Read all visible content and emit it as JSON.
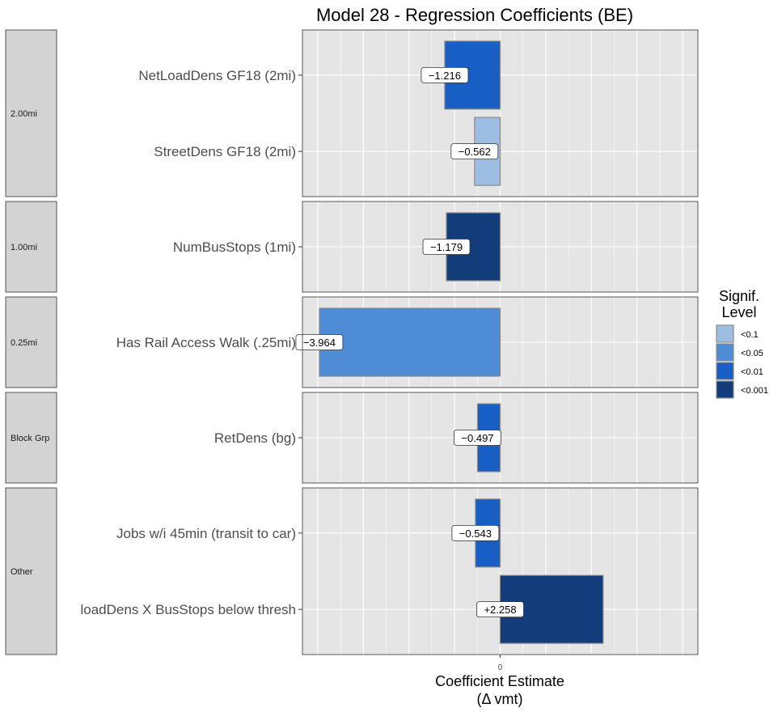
{
  "chart_data": {
    "type": "bar",
    "orientation": "horizontal",
    "title": "Model 28 - Regression Coefficients (BE)",
    "xlabel_line1": "Coefficient Estimate",
    "xlabel_line2": "(Δ vmt)",
    "x_tick_label": "0",
    "xlim": [
      -4.4,
      4.4
    ],
    "grid": true,
    "legend": {
      "title_line1": "Signif.",
      "title_line2": "Level",
      "placement": "right",
      "entries": [
        {
          "label": "<0.1",
          "color": "#9dbde3"
        },
        {
          "label": "<0.05",
          "color": "#4f8cd6"
        },
        {
          "label": "<0.01",
          "color": "#175fc5"
        },
        {
          "label": "<0.001",
          "color": "#133c7a"
        }
      ]
    },
    "facets": [
      {
        "label": "2.00mi",
        "bars": [
          {
            "name": "NetLoadDens GF18 (2mi)",
            "value": -1.216,
            "value_label": "−1.216",
            "signif": "<0.01"
          },
          {
            "name": "StreetDens GF18 (2mi)",
            "value": -0.562,
            "value_label": "−0.562",
            "signif": "<0.1"
          }
        ]
      },
      {
        "label": "1.00mi",
        "bars": [
          {
            "name": "NumBusStops (1mi)",
            "value": -1.179,
            "value_label": "−1.179",
            "signif": "<0.001"
          }
        ]
      },
      {
        "label": "0.25mi",
        "bars": [
          {
            "name": "Has Rail Access Walk (.25mi)",
            "value": -3.964,
            "value_label": "−3.964",
            "signif": "<0.05"
          }
        ]
      },
      {
        "label": "Block Grp",
        "bars": [
          {
            "name": "RetDens (bg)",
            "value": -0.497,
            "value_label": "−0.497",
            "signif": "<0.01"
          }
        ]
      },
      {
        "label": "Other",
        "bars": [
          {
            "name": "Jobs w/i 45min (transit to car)",
            "value": -0.543,
            "value_label": "−0.543",
            "signif": "<0.01"
          },
          {
            "name": "loadDens X BusStops below thresh",
            "value": 2.258,
            "value_label": "+2.258",
            "signif": "<0.001"
          }
        ]
      }
    ]
  }
}
